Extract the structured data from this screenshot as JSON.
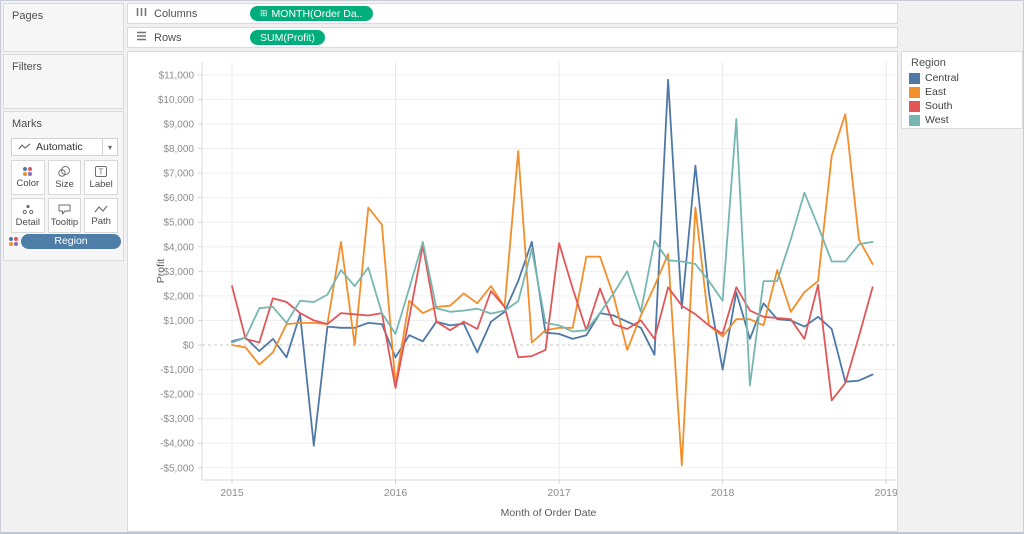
{
  "sidebar": {
    "pages_label": "Pages",
    "filters_label": "Filters",
    "marks_label": "Marks",
    "mark_type": "Automatic",
    "buttons": {
      "color": "Color",
      "size": "Size",
      "label": "Label",
      "detail": "Detail",
      "tooltip": "Tooltip",
      "path": "Path"
    },
    "region_pill": "Region",
    "pill_blue": "#4e7ea7"
  },
  "shelves": {
    "columns_label": "Columns",
    "columns_pill": "MONTH(Order Da..",
    "rows_label": "Rows",
    "rows_pill": "SUM(Profit)",
    "pill_green": "#00ae7c"
  },
  "legend": {
    "title": "Region",
    "items": [
      {
        "label": "Central",
        "color": "#4e79a7"
      },
      {
        "label": "East",
        "color": "#f28e2b"
      },
      {
        "label": "South",
        "color": "#e15759"
      },
      {
        "label": "West",
        "color": "#76b7b2"
      }
    ]
  },
  "chart_data": {
    "type": "line",
    "title": "",
    "xlabel": "Month of Order Date",
    "ylabel": "Profit",
    "ylim": [
      -5000,
      11000
    ],
    "grid": true,
    "legend_position": "right",
    "categories": [
      "Jan 2015",
      "Feb 2015",
      "Mar 2015",
      "Apr 2015",
      "May 2015",
      "Jun 2015",
      "Jul 2015",
      "Aug 2015",
      "Sep 2015",
      "Oct 2015",
      "Nov 2015",
      "Dec 2015",
      "Jan 2016",
      "Feb 2016",
      "Mar 2016",
      "Apr 2016",
      "May 2016",
      "Jun 2016",
      "Jul 2016",
      "Aug 2016",
      "Sep 2016",
      "Oct 2016",
      "Nov 2016",
      "Dec 2016",
      "Jan 2017",
      "Feb 2017",
      "Mar 2017",
      "Apr 2017",
      "May 2017",
      "Jun 2017",
      "Jul 2017",
      "Aug 2017",
      "Sep 2017",
      "Oct 2017",
      "Nov 2017",
      "Dec 2017",
      "Jan 2018",
      "Feb 2018",
      "Mar 2018",
      "Apr 2018",
      "May 2018",
      "Jun 2018",
      "Jul 2018",
      "Aug 2018",
      "Sep 2018",
      "Oct 2018",
      "Nov 2018",
      "Dec 2018"
    ],
    "series": [
      {
        "name": "Central",
        "color": "#4e79a7",
        "values": [
          150,
          300,
          -250,
          250,
          -500,
          1250,
          -4100,
          750,
          700,
          700,
          900,
          850,
          -500,
          400,
          150,
          950,
          800,
          870,
          -300,
          950,
          1350,
          2600,
          4200,
          500,
          450,
          250,
          400,
          1300,
          1200,
          950,
          700,
          -400,
          10800,
          1500,
          7300,
          2100,
          -1000,
          2150,
          250,
          1700,
          1050,
          1000,
          750,
          1150,
          650,
          -1500,
          -1450,
          -1200
        ]
      },
      {
        "name": "East",
        "color": "#f28e2b",
        "values": [
          0,
          -100,
          -800,
          -300,
          850,
          900,
          900,
          850,
          4200,
          0,
          5600,
          4900,
          -1600,
          1800,
          1300,
          1550,
          1600,
          2100,
          1700,
          2400,
          1550,
          7900,
          100,
          600,
          700,
          700,
          3600,
          3600,
          2000,
          -200,
          1200,
          2400,
          3700,
          -4900,
          5600,
          800,
          350,
          1050,
          1050,
          800,
          3050,
          1350,
          2150,
          2600,
          7700,
          9400,
          4300,
          3300
        ]
      },
      {
        "name": "South",
        "color": "#e15759",
        "values": [
          2400,
          250,
          100,
          1900,
          1750,
          1300,
          1000,
          850,
          1300,
          1250,
          1200,
          1300,
          -1750,
          1100,
          4050,
          950,
          600,
          950,
          650,
          2200,
          1550,
          -500,
          -450,
          -200,
          4150,
          2300,
          600,
          2300,
          850,
          650,
          1000,
          250,
          2350,
          1600,
          1250,
          800,
          450,
          2350,
          1400,
          1150,
          1100,
          1050,
          250,
          2450,
          -2250,
          -1550,
          350,
          2350
        ]
      },
      {
        "name": "West",
        "color": "#76b7b2",
        "values": [
          100,
          300,
          1500,
          1550,
          900,
          1800,
          1750,
          2050,
          3050,
          2400,
          3150,
          1300,
          450,
          2300,
          4200,
          1500,
          1350,
          1400,
          1480,
          1280,
          1400,
          1780,
          3900,
          900,
          800,
          550,
          600,
          1300,
          2100,
          3000,
          1350,
          4250,
          3450,
          3400,
          3300,
          2600,
          1800,
          9200,
          -1650,
          2600,
          2600,
          4300,
          6200,
          4850,
          3400,
          3400,
          4100,
          4200
        ]
      }
    ],
    "y_ticks": [
      {
        "v": 11000,
        "label": "$11,000"
      },
      {
        "v": 10000,
        "label": "$10,000"
      },
      {
        "v": 9000,
        "label": "$9,000"
      },
      {
        "v": 8000,
        "label": "$8,000"
      },
      {
        "v": 7000,
        "label": "$7,000"
      },
      {
        "v": 6000,
        "label": "$6,000"
      },
      {
        "v": 5000,
        "label": "$5,000"
      },
      {
        "v": 4000,
        "label": "$4,000"
      },
      {
        "v": 3000,
        "label": "$3,000"
      },
      {
        "v": 2000,
        "label": "$2,000"
      },
      {
        "v": 1000,
        "label": "$1,000"
      },
      {
        "v": 0,
        "label": "$0"
      },
      {
        "v": -1000,
        "label": "-$1,000"
      },
      {
        "v": -2000,
        "label": "-$2,000"
      },
      {
        "v": -3000,
        "label": "-$3,000"
      },
      {
        "v": -4000,
        "label": "-$4,000"
      },
      {
        "v": -5000,
        "label": "-$5,000"
      }
    ],
    "x_ticks": [
      {
        "m": 0,
        "label": "2015"
      },
      {
        "m": 12,
        "label": "2016"
      },
      {
        "m": 24,
        "label": "2017"
      },
      {
        "m": 36,
        "label": "2018"
      },
      {
        "m": 48,
        "label": "2019"
      }
    ]
  }
}
